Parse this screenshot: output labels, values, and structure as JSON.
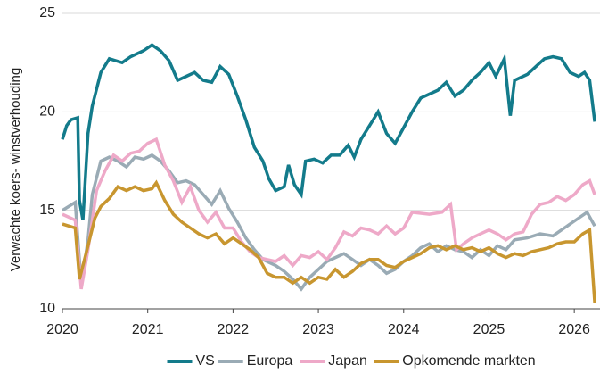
{
  "chart_data": {
    "type": "line",
    "y_label": "Verwachte koers- winstverhouding",
    "xlim": [
      2020,
      2026.27
    ],
    "xticks": [
      2020,
      2021,
      2022,
      2023,
      2024,
      2025,
      2026
    ],
    "ylim": [
      10,
      25
    ],
    "yticks": [
      10,
      15,
      20,
      25
    ],
    "grid": true,
    "legend": "bottom",
    "series": [
      {
        "name": "VS",
        "color": "#137b8b",
        "x": [
          2020.0,
          2020.05,
          2020.1,
          2020.18,
          2020.2,
          2020.24,
          2020.3,
          2020.35,
          2020.45,
          2020.55,
          2020.7,
          2020.8,
          2020.95,
          2021.05,
          2021.15,
          2021.25,
          2021.35,
          2021.45,
          2021.55,
          2021.65,
          2021.75,
          2021.85,
          2021.95,
          2022.05,
          2022.15,
          2022.25,
          2022.35,
          2022.42,
          2022.5,
          2022.6,
          2022.65,
          2022.72,
          2022.8,
          2022.85,
          2022.95,
          2023.05,
          2023.15,
          2023.25,
          2023.35,
          2023.42,
          2023.5,
          2023.6,
          2023.7,
          2023.8,
          2023.9,
          2024.0,
          2024.1,
          2024.2,
          2024.3,
          2024.4,
          2024.5,
          2024.6,
          2024.7,
          2024.8,
          2024.9,
          2025.0,
          2025.08,
          2025.18,
          2025.25,
          2025.3,
          2025.45,
          2025.55,
          2025.65,
          2025.75,
          2025.85,
          2025.95,
          2026.05,
          2026.12,
          2026.18,
          2026.24
        ],
        "values": [
          18.6,
          19.3,
          19.6,
          19.7,
          15.5,
          14.5,
          18.9,
          20.3,
          22.0,
          22.7,
          22.5,
          22.8,
          23.1,
          23.4,
          23.1,
          22.6,
          21.6,
          21.8,
          22.0,
          21.6,
          21.5,
          22.3,
          21.9,
          20.8,
          19.6,
          18.2,
          17.5,
          16.6,
          16.0,
          16.2,
          17.3,
          16.3,
          15.8,
          17.5,
          17.6,
          17.4,
          17.8,
          17.8,
          18.3,
          17.7,
          18.6,
          19.3,
          20.0,
          18.9,
          18.4,
          19.2,
          20.0,
          20.7,
          20.9,
          21.1,
          21.5,
          20.8,
          21.1,
          21.6,
          22.0,
          22.5,
          21.8,
          22.7,
          19.8,
          21.6,
          21.9,
          22.3,
          22.7,
          22.8,
          22.7,
          22.0,
          21.8,
          22.0,
          21.6,
          19.5
        ]
      },
      {
        "name": "Europa",
        "color": "#9aabb5",
        "x": [
          2020.0,
          2020.15,
          2020.22,
          2020.3,
          2020.35,
          2020.45,
          2020.55,
          2020.65,
          2020.75,
          2020.85,
          2020.95,
          2021.05,
          2021.15,
          2021.25,
          2021.35,
          2021.45,
          2021.55,
          2021.65,
          2021.75,
          2021.85,
          2021.95,
          2022.05,
          2022.15,
          2022.25,
          2022.35,
          2022.5,
          2022.6,
          2022.7,
          2022.8,
          2022.9,
          2023.0,
          2023.1,
          2023.2,
          2023.3,
          2023.4,
          2023.5,
          2023.6,
          2023.7,
          2023.8,
          2023.9,
          2024.0,
          2024.1,
          2024.2,
          2024.3,
          2024.4,
          2024.5,
          2024.6,
          2024.7,
          2024.8,
          2024.9,
          2025.0,
          2025.1,
          2025.2,
          2025.3,
          2025.45,
          2025.6,
          2025.75,
          2025.85,
          2025.95,
          2026.05,
          2026.15,
          2026.24
        ],
        "values": [
          15.0,
          15.4,
          11.2,
          13.5,
          15.8,
          17.5,
          17.7,
          17.5,
          17.2,
          17.7,
          17.6,
          17.8,
          17.5,
          17.0,
          16.4,
          16.5,
          16.3,
          15.8,
          15.3,
          16.0,
          15.1,
          14.4,
          13.6,
          13.0,
          12.5,
          12.2,
          11.9,
          11.5,
          11.0,
          11.6,
          12.0,
          12.4,
          12.6,
          12.8,
          12.5,
          12.2,
          12.5,
          12.2,
          11.8,
          12.0,
          12.4,
          12.7,
          13.1,
          13.3,
          12.9,
          13.2,
          13.0,
          12.9,
          12.6,
          13.0,
          12.7,
          13.2,
          13.0,
          13.5,
          13.6,
          13.8,
          13.7,
          14.0,
          14.3,
          14.6,
          14.9,
          14.2
        ]
      },
      {
        "name": "Japan",
        "color": "#eea9c8",
        "x": [
          2020.0,
          2020.15,
          2020.22,
          2020.3,
          2020.4,
          2020.5,
          2020.6,
          2020.7,
          2020.8,
          2020.9,
          2021.0,
          2021.1,
          2021.2,
          2021.3,
          2021.4,
          2021.5,
          2021.6,
          2021.7,
          2021.8,
          2021.9,
          2022.0,
          2022.1,
          2022.2,
          2022.3,
          2022.4,
          2022.5,
          2022.6,
          2022.7,
          2022.8,
          2022.9,
          2023.0,
          2023.1,
          2023.2,
          2023.3,
          2023.4,
          2023.5,
          2023.6,
          2023.7,
          2023.8,
          2023.9,
          2024.0,
          2024.1,
          2024.3,
          2024.45,
          2024.55,
          2024.62,
          2024.7,
          2024.8,
          2024.9,
          2025.0,
          2025.1,
          2025.2,
          2025.3,
          2025.4,
          2025.5,
          2025.6,
          2025.7,
          2025.8,
          2025.9,
          2026.0,
          2026.1,
          2026.18,
          2026.24
        ],
        "values": [
          14.8,
          14.5,
          11.0,
          13.0,
          16.0,
          17.0,
          17.8,
          17.5,
          17.9,
          18.0,
          18.4,
          18.6,
          17.3,
          16.5,
          15.4,
          16.2,
          15.0,
          14.4,
          14.9,
          14.1,
          14.1,
          13.4,
          12.9,
          12.6,
          12.5,
          12.4,
          12.7,
          12.2,
          12.7,
          12.6,
          12.9,
          12.5,
          13.1,
          13.9,
          13.7,
          14.1,
          14.0,
          13.8,
          14.2,
          13.8,
          14.1,
          14.9,
          14.8,
          14.9,
          15.3,
          13.0,
          13.3,
          13.6,
          13.8,
          14.0,
          13.8,
          13.5,
          13.8,
          13.9,
          14.8,
          15.3,
          15.4,
          15.7,
          15.5,
          15.8,
          16.3,
          16.5,
          15.8
        ]
      },
      {
        "name": "Opkomende markten",
        "color": "#c8962f",
        "x": [
          2020.0,
          2020.15,
          2020.2,
          2020.3,
          2020.38,
          2020.45,
          2020.55,
          2020.65,
          2020.75,
          2020.85,
          2020.95,
          2021.05,
          2021.1,
          2021.2,
          2021.3,
          2021.4,
          2021.5,
          2021.6,
          2021.7,
          2021.8,
          2021.9,
          2022.0,
          2022.1,
          2022.2,
          2022.3,
          2022.4,
          2022.5,
          2022.6,
          2022.7,
          2022.8,
          2022.9,
          2023.0,
          2023.1,
          2023.2,
          2023.3,
          2023.4,
          2023.5,
          2023.6,
          2023.7,
          2023.8,
          2023.9,
          2024.0,
          2024.1,
          2024.2,
          2024.3,
          2024.4,
          2024.5,
          2024.6,
          2024.7,
          2024.8,
          2024.9,
          2025.0,
          2025.1,
          2025.2,
          2025.3,
          2025.4,
          2025.5,
          2025.6,
          2025.7,
          2025.8,
          2025.9,
          2026.0,
          2026.1,
          2026.18,
          2026.24
        ],
        "values": [
          14.3,
          14.1,
          11.5,
          13.2,
          14.6,
          15.2,
          15.6,
          16.2,
          16.0,
          16.2,
          16.0,
          16.1,
          16.4,
          15.5,
          14.8,
          14.4,
          14.1,
          13.8,
          13.6,
          13.8,
          13.3,
          13.6,
          13.3,
          13.0,
          12.6,
          11.8,
          11.6,
          11.6,
          11.3,
          11.6,
          11.3,
          11.6,
          11.5,
          12.0,
          11.6,
          11.9,
          12.3,
          12.5,
          12.5,
          12.2,
          12.1,
          12.4,
          12.6,
          12.8,
          13.1,
          13.2,
          13.0,
          13.2,
          13.0,
          13.1,
          12.9,
          13.1,
          12.8,
          12.6,
          12.8,
          12.7,
          12.9,
          13.0,
          13.1,
          13.3,
          13.4,
          13.4,
          13.8,
          14.0,
          10.3
        ]
      }
    ]
  }
}
